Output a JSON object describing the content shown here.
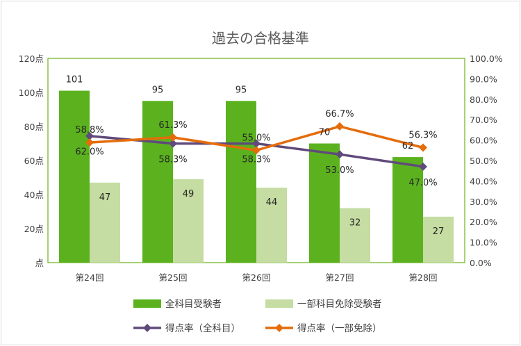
{
  "chart_data": {
    "type": "bar",
    "title": "過去の合格基準",
    "categories": [
      "第24回",
      "第25回",
      "第26回",
      "第27回",
      "第28回"
    ],
    "series": [
      {
        "name": "全科目受験者",
        "kind": "bar",
        "axis": "left",
        "color": "#5bb21e",
        "values": [
          101,
          95,
          95,
          70,
          62
        ]
      },
      {
        "name": "一部科目免除受験者",
        "kind": "bar",
        "axis": "left",
        "color": "#c5dca2",
        "values": [
          47,
          49,
          44,
          32,
          27
        ]
      },
      {
        "name": "得点率（全科目）",
        "kind": "line",
        "axis": "right",
        "color": "#604a7b",
        "marker": "diamond",
        "values": [
          62.0,
          58.3,
          58.3,
          53.0,
          47.0
        ],
        "labels": [
          "62.0%",
          "58.3%",
          "58.3%",
          "53.0%",
          "47.0%"
        ]
      },
      {
        "name": "得点率（一部免除）",
        "kind": "line",
        "axis": "right",
        "color": "#e46c0a",
        "marker": "diamond",
        "values": [
          58.8,
          61.3,
          55.0,
          66.7,
          56.3
        ],
        "labels": [
          "58.8%",
          "61.3%",
          "55.0%",
          "66.7%",
          "56.3%"
        ]
      }
    ],
    "y_left": {
      "min": 0,
      "max": 120,
      "step": 20,
      "tick_labels": [
        "点",
        "20点",
        "40点",
        "60点",
        "80点",
        "100点",
        "120点"
      ]
    },
    "y_right": {
      "min": 0,
      "max": 100,
      "step": 10,
      "tick_labels": [
        "0.0%",
        "10.0%",
        "20.0%",
        "30.0%",
        "40.0%",
        "50.0%",
        "60.0%",
        "70.0%",
        "80.0%",
        "90.0%",
        "100.0%"
      ]
    },
    "grid": false,
    "plot_border_color": "#77b829",
    "legend_position": "bottom"
  }
}
